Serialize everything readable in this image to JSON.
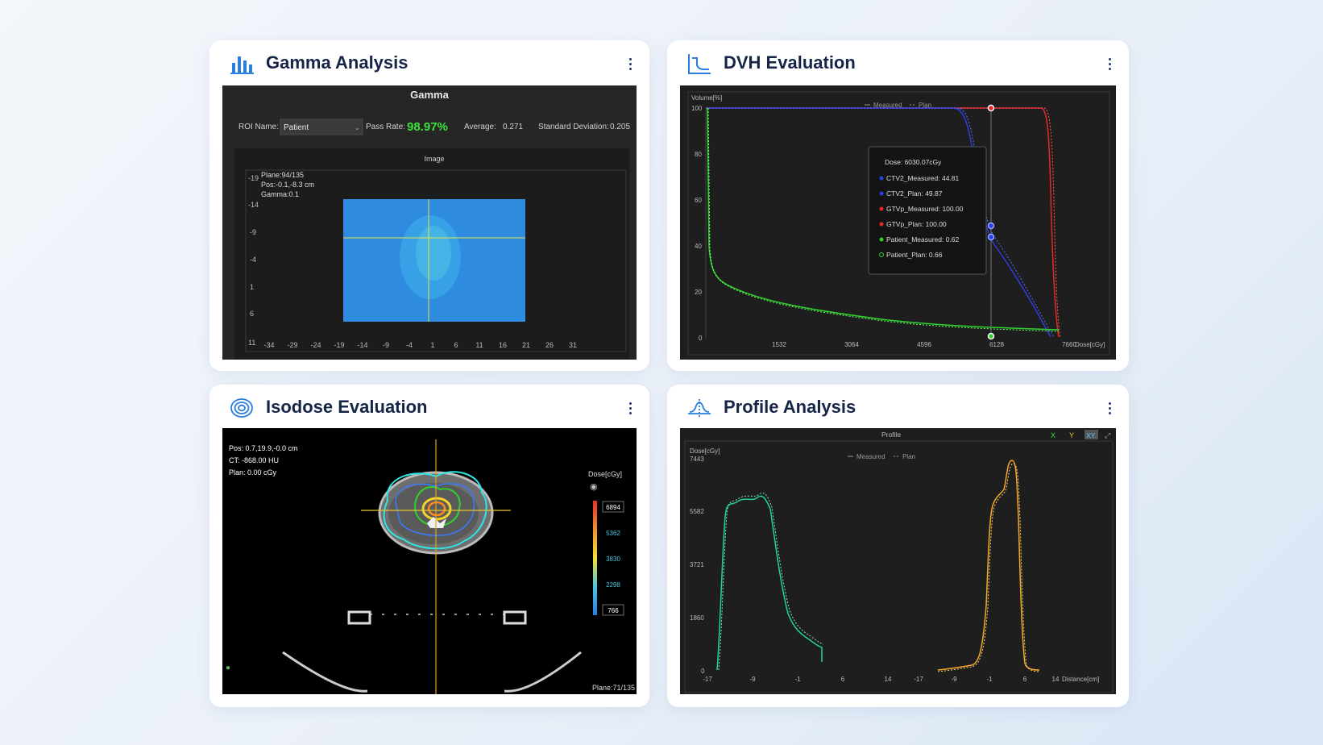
{
  "cards": {
    "gamma": {
      "title": "Gamma Analysis",
      "icon": "bar-chart-icon",
      "panel_title": "Gamma",
      "roi_label": "ROI Name:",
      "roi_value": "Patient",
      "pass_rate_label": "Pass Rate:",
      "pass_rate_value": "98.97%",
      "average_label": "Average:",
      "average_value": "0.271",
      "std_label": "Standard Deviation:",
      "std_value": "0.205",
      "image_title": "Image",
      "plane": "Plane:94/135",
      "pos": "Pos:-0.1,-8.3 cm",
      "gamma": "Gamma:0.1",
      "y_ticks": [
        "-19",
        "-14",
        "-9",
        "-4",
        "1",
        "6",
        "11"
      ],
      "x_ticks": [
        "-34",
        "-29",
        "-24",
        "-19",
        "-14",
        "-9",
        "-4",
        "1",
        "6",
        "11",
        "16",
        "21",
        "26",
        "31"
      ]
    },
    "dvh": {
      "title": "DVH Evaluation",
      "icon": "dvh-curve-icon",
      "ylabel": "Volume[%]",
      "xlabel": "Dose[cGy]",
      "legend_measured": "Measured",
      "legend_plan": "Plan",
      "y_ticks": [
        "100",
        "80",
        "60",
        "40",
        "20",
        "0"
      ],
      "x_ticks": [
        "1532",
        "3064",
        "4596",
        "6128",
        "7660"
      ],
      "tooltip": {
        "dose": "Dose: 6030.07cGy",
        "rows": [
          {
            "label": "CTV2_Measured: 44.81",
            "color": "#2a3fe0"
          },
          {
            "label": "CTV2_Plan: 49.87",
            "color": "#2a3fe0"
          },
          {
            "label": "GTVp_Measured: 100.00",
            "color": "#e02a2a"
          },
          {
            "label": "GTVp_Plan: 100.00",
            "color": "#e02a2a"
          },
          {
            "label": "Patient_Measured: 0.62",
            "color": "#2fd12f"
          },
          {
            "label": "Patient_Plan: 0.66",
            "color": "#2fd12f"
          }
        ]
      }
    },
    "isodose": {
      "title": "Isodose Evaluation",
      "icon": "isodose-rings-icon",
      "pos": "Pos: 0.7,19.9,-0.0 cm",
      "ct": "CT: -868.00 HU",
      "plan": "Plan: 0.00 cGy",
      "dose_label": "Dose[cGy]",
      "legend_values": [
        "6894",
        "5362",
        "3830",
        "2298",
        "766"
      ],
      "plane": "Plane:71/135"
    },
    "profile": {
      "title": "Profile Analysis",
      "icon": "profile-curve-icon",
      "panel_title": "Profile",
      "btn_x": "X",
      "btn_y": "Y",
      "btn_xy": "XY",
      "ylabel": "Dose[cGy]",
      "ymax": "7443",
      "y_ticks": [
        "5582",
        "3721",
        "1860",
        "0"
      ],
      "legend_measured": "Measured",
      "legend_plan": "Plan",
      "x_ticks": [
        "-17",
        "-9",
        "-1",
        "6",
        "14",
        "-17",
        "-9",
        "-1",
        "6",
        "14"
      ],
      "xlabel": "Distance[cm]"
    }
  }
}
